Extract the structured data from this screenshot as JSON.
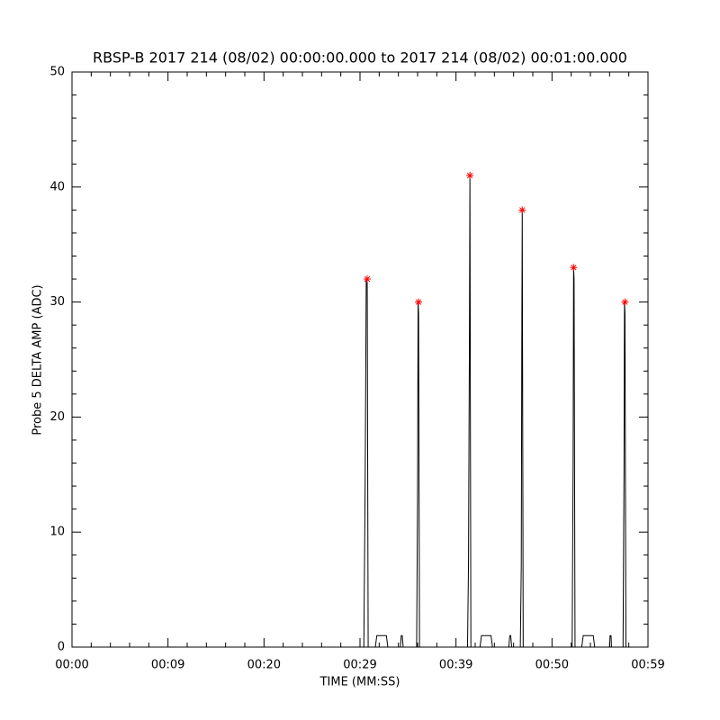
{
  "chart_data": {
    "type": "line",
    "title": "RBSP-B 2017 214 (08/02) 00:00:00.000 to 2017 214 (08/02) 00:01:00.000",
    "xlabel": "TIME (MM:SS)",
    "ylabel": "Probe 5 DELTA AMP (ADC)",
    "xlim": [
      0,
      60
    ],
    "ylim": [
      0,
      50
    ],
    "xticks": [
      {
        "value": 0,
        "label": "00:00"
      },
      {
        "value": 10,
        "label": "00:09"
      },
      {
        "value": 20,
        "label": "00:20"
      },
      {
        "value": 30,
        "label": "00:29"
      },
      {
        "value": 40,
        "label": "00:39"
      },
      {
        "value": 50,
        "label": "00:50"
      },
      {
        "value": 60,
        "label": "00:59"
      }
    ],
    "yticks": [
      0,
      10,
      20,
      30,
      40,
      50
    ],
    "series": [
      {
        "color": "#000000",
        "x": [
          0,
          30.4,
          30.55,
          30.65,
          30.75,
          30.85,
          31.6,
          31.75,
          32.75,
          32.9,
          34.2,
          34.3,
          34.4,
          34.5,
          35.9,
          36.0,
          36.05,
          36.1,
          36.2,
          41.2,
          41.3,
          41.4,
          41.45,
          41.55,
          42.5,
          42.65,
          43.65,
          43.8,
          45.5,
          45.6,
          45.7,
          45.8,
          46.7,
          46.8,
          46.85,
          46.9,
          47.0,
          52.1,
          52.2,
          52.25,
          52.3,
          52.4,
          53.1,
          53.25,
          54.3,
          54.45,
          56.0,
          56.05,
          56.15,
          56.2,
          57.4,
          57.5,
          57.55,
          57.6,
          57.7,
          60
        ],
        "values": [
          0,
          0,
          16,
          32,
          32,
          0,
          0,
          1,
          1,
          0,
          0,
          1,
          1,
          0,
          0,
          14,
          30,
          29,
          0,
          0,
          7,
          27,
          41,
          0,
          0,
          1,
          1,
          0,
          0,
          1,
          1,
          0,
          0,
          7,
          25,
          38,
          0,
          0,
          16,
          33,
          32,
          0,
          0,
          1,
          1,
          0,
          0,
          1,
          1,
          0,
          0,
          15,
          30,
          29,
          0,
          0
        ]
      },
      {
        "color": "#ff0000",
        "marker": "asterisk",
        "x": [
          30.75,
          36.1,
          41.45,
          46.9,
          52.25,
          57.6
        ],
        "values": [
          32,
          30,
          41,
          38,
          33,
          30
        ]
      }
    ]
  }
}
